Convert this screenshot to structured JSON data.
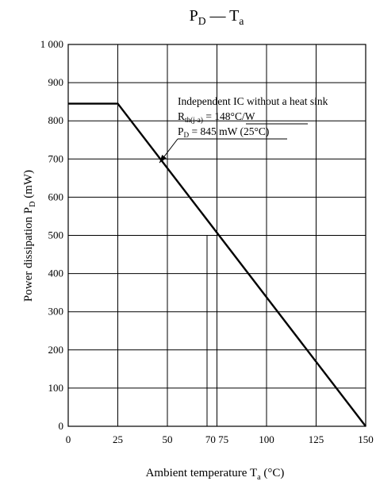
{
  "chart_data": {
    "type": "line",
    "title": {
      "main": "P",
      "main_sub": "D",
      "sep": " — ",
      "second": "T",
      "second_sub": "a"
    },
    "xlabel": {
      "text": "Ambient temperature  T",
      "sub": "a",
      "unit": "  (°C)"
    },
    "ylabel": {
      "text": "Power dissipation  P",
      "sub": "D",
      "unit": "  (mW)"
    },
    "xlim": [
      0,
      150
    ],
    "ylim": [
      0,
      1000
    ],
    "xticks": [
      0,
      25,
      50,
      75,
      100,
      125,
      150
    ],
    "xtick_labels": [
      "0",
      "25",
      "50",
      "70 75",
      "100",
      "125",
      "150"
    ],
    "x_extra_gridlines": [
      70
    ],
    "yticks": [
      0,
      100,
      200,
      300,
      400,
      500,
      600,
      700,
      800,
      900,
      1000
    ],
    "ytick_labels": [
      "0",
      "100",
      "200",
      "300",
      "400",
      "500",
      "600",
      "700",
      "800",
      "900",
      "1 000"
    ],
    "grid": true,
    "series": [
      {
        "x": [
          0,
          25,
          150
        ],
        "y": [
          845,
          845,
          0
        ]
      }
    ],
    "annotation": {
      "line1": "Independent IC without a heat sink",
      "line2": {
        "prefix": "R",
        "sub": "th(j-a)",
        "rest": " = 148°C/W"
      },
      "line3": {
        "prefix": "P",
        "sub": "D",
        "rest": " = 845 mW (25°C)"
      },
      "arrow_to": {
        "x": 46,
        "y": 690
      }
    }
  }
}
